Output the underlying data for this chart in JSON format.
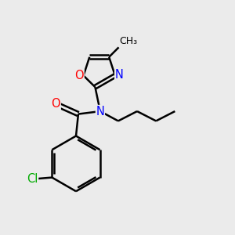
{
  "background_color": "#ebebeb",
  "line_color": "#000000",
  "bond_width": 1.8,
  "atom_colors": {
    "O": "#ff0000",
    "N": "#0000ff",
    "Cl": "#00aa00",
    "C": "#000000"
  },
  "font_size": 10.5
}
